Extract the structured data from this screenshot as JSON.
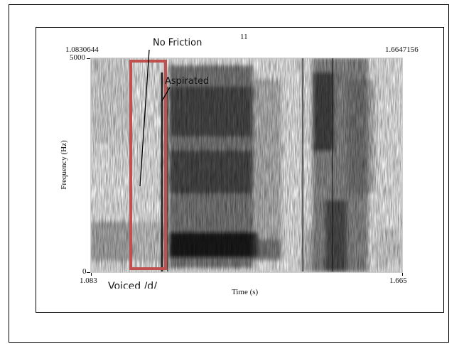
{
  "figure_number": "11",
  "time_range": {
    "start": "1.0830644",
    "end": "1.6647156"
  },
  "axis": {
    "x_label": "Time (s)",
    "x_start": "1.083",
    "x_end": "1.665",
    "y_label": "Frequency (Hz)",
    "y_top": "5000",
    "y_bottom": "0"
  },
  "annotations": {
    "no_friction": "No Friction",
    "aspirated": "Aspirated",
    "voiced": "Voiced /d/"
  },
  "colors": {
    "highlight": "#c0504d",
    "spectrogram_ink": "#1a1a1a"
  }
}
